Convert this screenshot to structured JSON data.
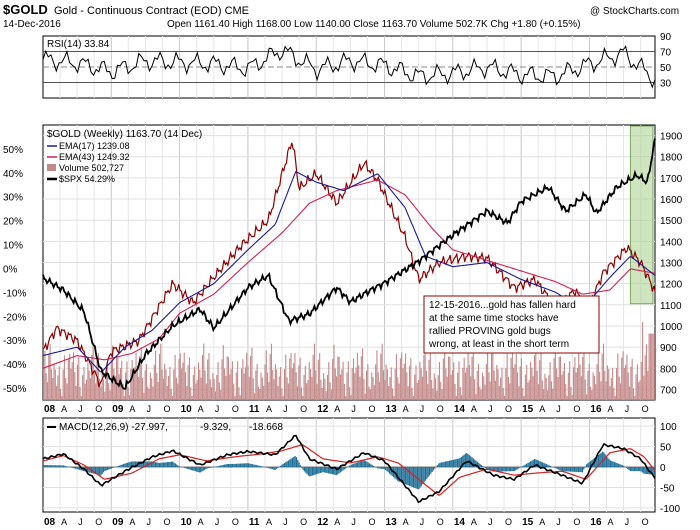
{
  "header": {
    "symbol": "$GOLD",
    "name": "Gold - Continuous Contract (EOD)",
    "exchange": "CME",
    "watermark": "@ StockCharts.com",
    "date": "14-Dec-2016",
    "quote": {
      "open_label": "Open",
      "open": "1161.40",
      "high_label": "High",
      "high": "1168.00",
      "low_label": "Low",
      "low": "1140.00",
      "close_label": "Close",
      "close": "1163.70",
      "volume_label": "Volume",
      "volume": "502.7K",
      "chg_label": "Chg",
      "chg": "+1.80 (+0.15%)"
    }
  },
  "colors": {
    "price": "#8b0000",
    "ema17": "#1a1a99",
    "ema43": "#d62050",
    "spx": "#000000",
    "volume": "#c48a8a",
    "rsi": "#000000",
    "macd": "#000000",
    "signal": "#d62020",
    "histogram": "#1f6f98",
    "highlight": "#a8d08d",
    "annotation_border": "#8b0000",
    "annotation_text": "#8b0000"
  },
  "chart_data": [
    {
      "type": "line",
      "panel": "rsi",
      "legend": "RSI(14) 33.84",
      "ylim": [
        10,
        90
      ],
      "y_ticks": [
        30,
        50,
        70,
        90
      ],
      "reference_lines": [
        30,
        50,
        70
      ],
      "x_start": 2008.0,
      "x_end": 2016.96,
      "series": [
        {
          "name": "RSI(14)",
          "x": [
            2008.0,
            2008.5,
            2009.0,
            2009.5,
            2010.0,
            2010.5,
            2011.0,
            2011.5,
            2012.0,
            2012.5,
            2013.0,
            2013.5,
            2014.0,
            2014.5,
            2015.0,
            2015.5,
            2016.0,
            2016.5,
            2016.96
          ],
          "values": [
            60,
            55,
            44,
            58,
            56,
            54,
            48,
            72,
            47,
            58,
            52,
            38,
            42,
            50,
            40,
            38,
            54,
            68,
            33.84
          ]
        }
      ]
    },
    {
      "type": "line",
      "panel": "price",
      "title": "$GOLD (Weekly) 1163.70 (14 Dec)",
      "ylim_left_pct": [
        -55,
        60
      ],
      "left_ticks": [
        "50%",
        "40%",
        "30%",
        "20%",
        "10%",
        "0%",
        "-10%",
        "-20%",
        "-30%",
        "-40%",
        "-50%"
      ],
      "ylim_right": [
        650,
        1950
      ],
      "right_ticks": [
        1900,
        1800,
        1700,
        1600,
        1500,
        1400,
        1300,
        1200,
        1100,
        1000,
        900,
        800,
        700
      ],
      "x_labels": [
        "08",
        "A",
        "J",
        "O",
        "09",
        "A",
        "J",
        "O",
        "10",
        "A",
        "J",
        "O",
        "11",
        "A",
        "J",
        "O",
        "12",
        "A",
        "J",
        "O",
        "13",
        "A",
        "J",
        "O",
        "14",
        "A",
        "J",
        "O",
        "15",
        "A",
        "J",
        "O",
        "16",
        "A",
        "J",
        "O"
      ],
      "bold_x_labels": [
        "08",
        "09",
        "10",
        "11",
        "12",
        "13",
        "14",
        "15",
        "16"
      ],
      "x_start": 2008.0,
      "x_end": 2016.96,
      "series": [
        {
          "name": "EMA(17) 1239.08",
          "x": [
            2008.0,
            2008.5,
            2008.85,
            2009.2,
            2009.6,
            2010.0,
            2010.5,
            2011.0,
            2011.4,
            2011.7,
            2012.0,
            2012.4,
            2012.9,
            2013.3,
            2013.6,
            2014.0,
            2014.5,
            2015.0,
            2015.5,
            2015.9,
            2016.3,
            2016.6,
            2016.96
          ],
          "values": [
            860,
            900,
            780,
            900,
            980,
            1110,
            1200,
            1360,
            1480,
            1730,
            1680,
            1640,
            1720,
            1560,
            1330,
            1280,
            1300,
            1220,
            1160,
            1080,
            1230,
            1330,
            1239
          ]
        },
        {
          "name": "EMA(43) 1249.32",
          "x": [
            2008.0,
            2008.5,
            2008.9,
            2009.3,
            2009.7,
            2010.0,
            2010.5,
            2011.0,
            2011.5,
            2011.9,
            2012.3,
            2012.9,
            2013.3,
            2013.7,
            2014.0,
            2014.5,
            2015.0,
            2015.5,
            2015.9,
            2016.3,
            2016.6,
            2016.96
          ],
          "values": [
            800,
            860,
            840,
            870,
            940,
            1060,
            1150,
            1300,
            1440,
            1580,
            1640,
            1690,
            1620,
            1460,
            1360,
            1310,
            1260,
            1210,
            1150,
            1170,
            1270,
            1249
          ]
        },
        {
          "name": "$GOLD",
          "x": [
            2008.0,
            2008.2,
            2008.5,
            2008.85,
            2009.0,
            2009.4,
            2009.9,
            2010.2,
            2010.5,
            2010.9,
            2011.3,
            2011.65,
            2011.75,
            2012.0,
            2012.3,
            2012.7,
            2012.9,
            2013.3,
            2013.5,
            2013.8,
            2014.2,
            2014.5,
            2014.9,
            2015.2,
            2015.5,
            2015.8,
            2015.95,
            2016.2,
            2016.55,
            2016.75,
            2016.96
          ],
          "values": [
            880,
            990,
            930,
            720,
            880,
            930,
            1200,
            1110,
            1230,
            1380,
            1500,
            1880,
            1650,
            1720,
            1580,
            1770,
            1690,
            1420,
            1220,
            1300,
            1330,
            1320,
            1180,
            1220,
            1090,
            1170,
            1060,
            1250,
            1370,
            1300,
            1163.7
          ]
        },
        {
          "name": "$SPX 54.29%",
          "x": [
            2008.0,
            2008.3,
            2008.6,
            2008.85,
            2009.2,
            2009.5,
            2009.9,
            2010.3,
            2010.5,
            2011.0,
            2011.3,
            2011.6,
            2011.9,
            2012.3,
            2012.5,
            2012.8,
            2013.0,
            2013.5,
            2014.0,
            2014.5,
            2014.8,
            2015.0,
            2015.4,
            2015.65,
            2015.95,
            2016.1,
            2016.4,
            2016.7,
            2016.85,
            2016.96
          ],
          "values": [
            -4,
            -9,
            -18,
            -43,
            -50,
            -36,
            -24,
            -17,
            -25,
            -8,
            -3,
            -22,
            -19,
            -8,
            -14,
            -9,
            -6,
            3,
            14,
            24,
            19,
            28,
            34,
            24,
            31,
            23,
            34,
            39,
            36,
            54.29
          ]
        }
      ],
      "volume": {
        "name": "Volume 502,727",
        "max": 100,
        "latest": 90
      }
    },
    {
      "type": "line",
      "panel": "macd",
      "legend": "MACD(12,26,9)",
      "macd_value": "-27.997",
      "signal_value": "-9.329",
      "hist_value": "-18.668",
      "ylim": [
        -110,
        120
      ],
      "y_ticks": [
        100,
        50,
        0,
        -50,
        -100
      ],
      "x_start": 2008.0,
      "x_end": 2016.96,
      "series": [
        {
          "name": "MACD",
          "x": [
            2008.0,
            2008.3,
            2008.6,
            2008.85,
            2009.2,
            2009.6,
            2009.9,
            2010.3,
            2010.7,
            2011.0,
            2011.4,
            2011.7,
            2011.9,
            2012.3,
            2012.7,
            2013.0,
            2013.3,
            2013.5,
            2013.8,
            2014.2,
            2014.6,
            2014.9,
            2015.2,
            2015.6,
            2015.9,
            2016.2,
            2016.5,
            2016.75,
            2016.96
          ],
          "values": [
            20,
            32,
            -5,
            -45,
            -10,
            25,
            40,
            5,
            30,
            38,
            30,
            78,
            20,
            -5,
            35,
            15,
            -45,
            -85,
            -60,
            15,
            -20,
            -30,
            5,
            -20,
            -40,
            55,
            45,
            20,
            -28
          ]
        },
        {
          "name": "Signal",
          "x": [
            2008.0,
            2008.3,
            2008.6,
            2008.9,
            2009.3,
            2009.7,
            2010.0,
            2010.4,
            2010.8,
            2011.2,
            2011.5,
            2011.8,
            2012.1,
            2012.5,
            2012.9,
            2013.2,
            2013.5,
            2013.8,
            2014.1,
            2014.5,
            2014.9,
            2015.2,
            2015.6,
            2015.95,
            2016.3,
            2016.6,
            2016.8,
            2016.96
          ],
          "values": [
            15,
            28,
            5,
            -30,
            -15,
            20,
            30,
            15,
            25,
            32,
            40,
            55,
            20,
            10,
            25,
            10,
            -30,
            -70,
            -25,
            -5,
            -20,
            -15,
            -10,
            -30,
            35,
            45,
            25,
            -9
          ]
        }
      ]
    }
  ],
  "annotation": {
    "lines": [
      "12-15-2016...gold has fallen hard",
      "at the same time stocks have",
      "rallied PROVING gold bugs",
      "wrong, at least in the short term"
    ]
  }
}
